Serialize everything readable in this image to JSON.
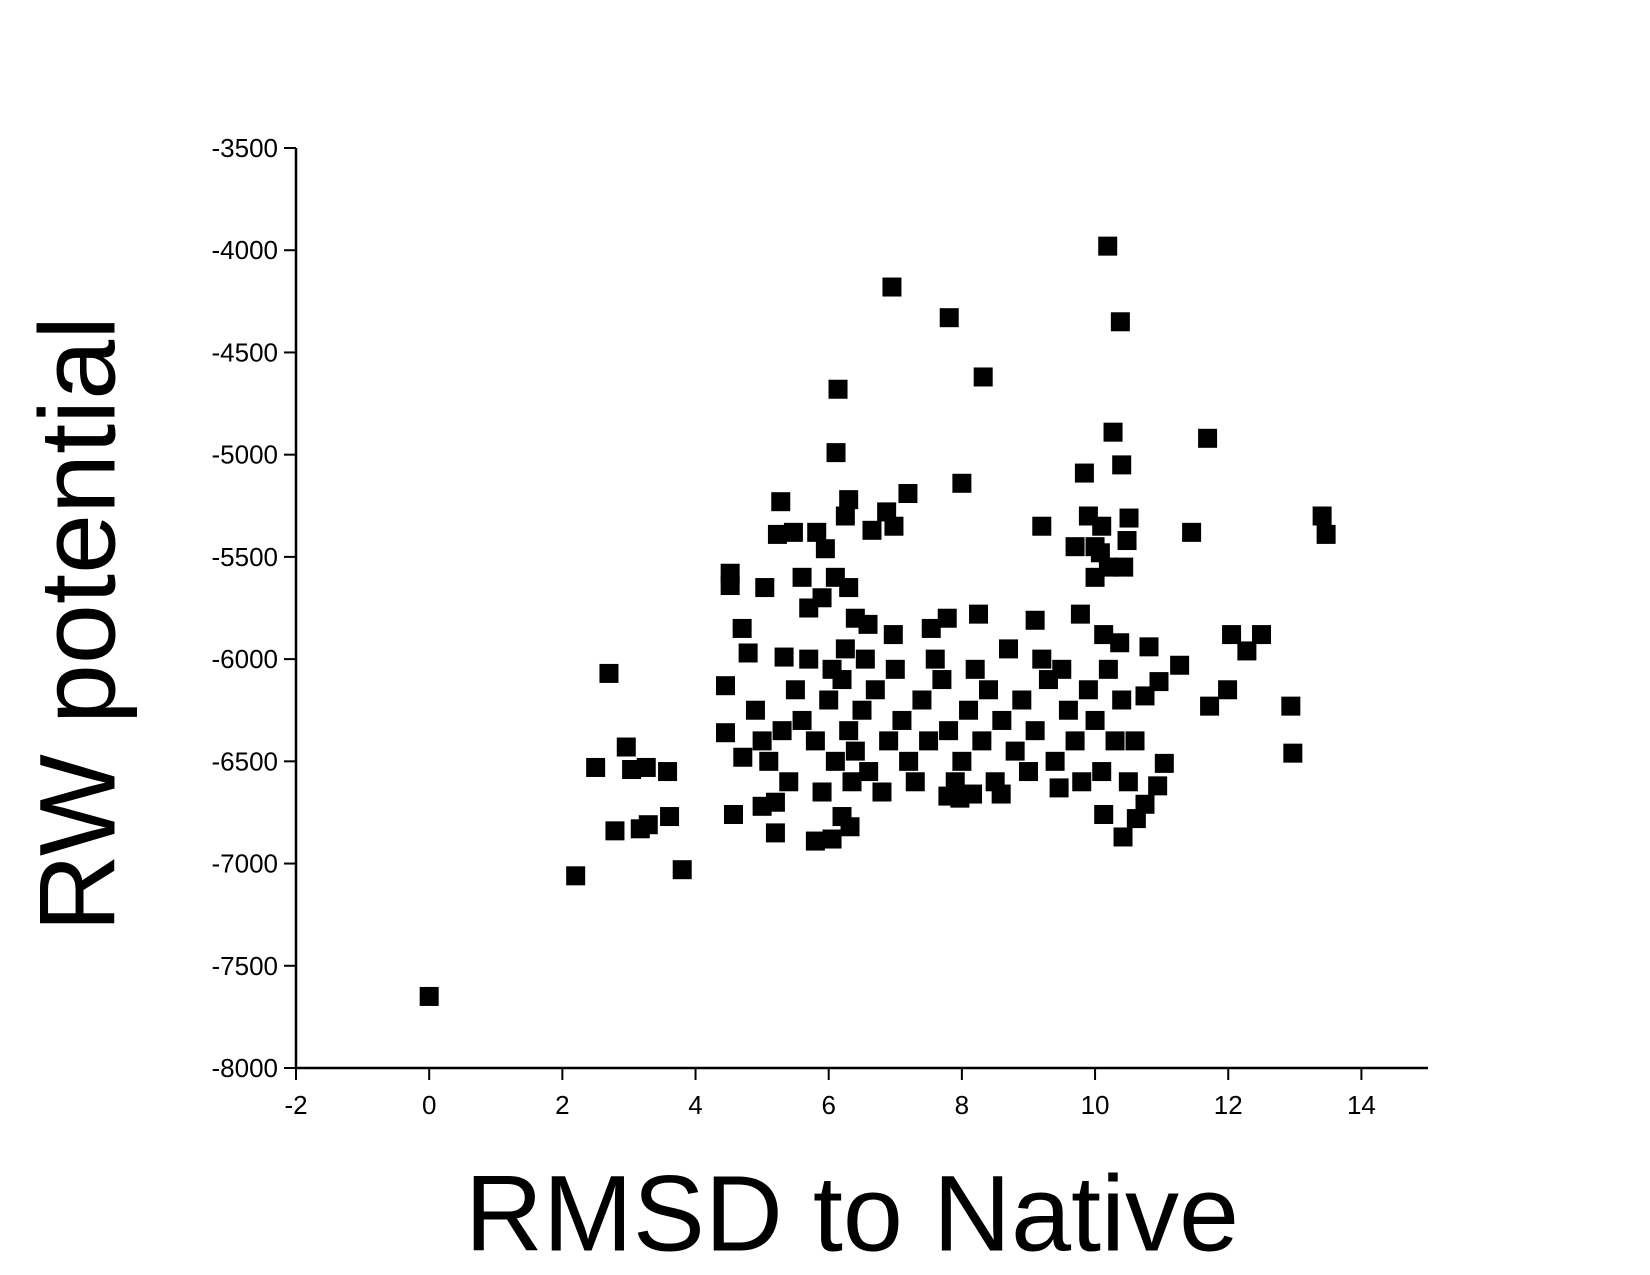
{
  "chart_data": {
    "type": "scatter",
    "xlabel": "RMSD to Native",
    "ylabel": "RW potential",
    "xlim": [
      -2,
      15
    ],
    "ylim": [
      -8000,
      -3500
    ],
    "xticks": [
      -2,
      0,
      2,
      4,
      6,
      8,
      10,
      12,
      14
    ],
    "yticks": [
      -8000,
      -7500,
      -7000,
      -6500,
      -6000,
      -5500,
      -5000,
      -4500,
      -4000,
      -3500
    ],
    "grid": false,
    "color": "#000000",
    "x": [
      0,
      2.2,
      2.7,
      2.5,
      2.96,
      3.04,
      3.26,
      3.58,
      2.79,
      3.17,
      3.29,
      3.61,
      3.8,
      10.19,
      6.95,
      7.81,
      10.38,
      8.32,
      6.14,
      10.27,
      11.69,
      10.4,
      13.41,
      13.47,
      11.45,
      12.94,
      12.97,
      11.72,
      11.99,
      12.05,
      12.5,
      12.28,
      11.27,
      10.81,
      11.04,
      8.0,
      7.19,
      6.11,
      9.2,
      9.84,
      10.08,
      10.51,
      10.48,
      10.43,
      6.65,
      6.87,
      6.98,
      5.28,
      5.23,
      5.47,
      5.82,
      5.95,
      6.3,
      6.25,
      4.52,
      4.52,
      4.7,
      4.79,
      4.45,
      4.45,
      4.57,
      4.71,
      5.0,
      5.2,
      5.8,
      6.05,
      6.2,
      6.32,
      5.33,
      5.04,
      7.79,
      7.97,
      8.16,
      8.59,
      9.46,
      10.13,
      10.42,
      10.62,
      10.75,
      10.94,
      9.78,
      9.1,
      8.25,
      7.54,
      7.78,
      6.97,
      10.13,
      10.37,
      6.59,
      10.75,
      10.96,
      5.6,
      5.8,
      6.0,
      6.1,
      6.2,
      6.3,
      6.4,
      6.5,
      6.6,
      6.7,
      6.9,
      7.1,
      7.2,
      7.4,
      7.5,
      7.7,
      7.8,
      8.0,
      8.1,
      8.3,
      8.4,
      8.6,
      8.8,
      8.9,
      9.1,
      9.3,
      9.4,
      9.6,
      9.7,
      9.9,
      10.0,
      10.1,
      10.3,
      10.4,
      10.5,
      5.4,
      5.5,
      5.7,
      5.9,
      6.05,
      6.25,
      6.35,
      6.55,
      6.8,
      7.0,
      7.3,
      7.6,
      7.9,
      8.2,
      8.5,
      8.7,
      9.0,
      9.2,
      9.5,
      9.8,
      10.2,
      10.6,
      5.1,
      5.0,
      4.9,
      5.3,
      5.2,
      5.9,
      6.1,
      6.3,
      5.6,
      5.7,
      6.4,
      10.0,
      10.2,
      9.7,
      9.9,
      10.0,
      10.1
    ],
    "values": [
      -7650,
      -7060,
      -6070,
      -6530,
      -6430,
      -6540,
      -6530,
      -6550,
      -6840,
      -6830,
      -6810,
      -6770,
      -7030,
      -3980,
      -4180,
      -4330,
      -4350,
      -4620,
      -4680,
      -4890,
      -4920,
      -5050,
      -5300,
      -5390,
      -5380,
      -6230,
      -6460,
      -6230,
      -6150,
      -5880,
      -5880,
      -5960,
      -6030,
      -5940,
      -6510,
      -5140,
      -5190,
      -4990,
      -5350,
      -5090,
      -5480,
      -5310,
      -5420,
      -5550,
      -5370,
      -5280,
      -5350,
      -5230,
      -5390,
      -5380,
      -5380,
      -5460,
      -5220,
      -5300,
      -5580,
      -5640,
      -5850,
      -5970,
      -6130,
      -6360,
      -6760,
      -6480,
      -6720,
      -6850,
      -6890,
      -6880,
      -6770,
      -6820,
      -5990,
      -5650,
      -6670,
      -6680,
      -6660,
      -6660,
      -6630,
      -6760,
      -6870,
      -6780,
      -6710,
      -6620,
      -5780,
      -5810,
      -5780,
      -5850,
      -5800,
      -5880,
      -5880,
      -5920,
      -5830,
      -6180,
      -6110,
      -6300,
      -6400,
      -6200,
      -6500,
      -6100,
      -6350,
      -6450,
      -6250,
      -6550,
      -6150,
      -6400,
      -6300,
      -6500,
      -6200,
      -6400,
      -6100,
      -6350,
      -6500,
      -6250,
      -6400,
      -6150,
      -6300,
      -6450,
      -6200,
      -6350,
      -6100,
      -6500,
      -6250,
      -6400,
      -6150,
      -6300,
      -6550,
      -6400,
      -6200,
      -6600,
      -6600,
      -6150,
      -6000,
      -6650,
      -6050,
      -5950,
      -6600,
      -6000,
      -6650,
      -6050,
      -6600,
      -6000,
      -6600,
      -6050,
      -6600,
      -5950,
      -6550,
      -6000,
      -6050,
      -6600,
      -6050,
      -6400,
      -6500,
      -6400,
      -6250,
      -6350,
      -6700,
      -5700,
      -5600,
      -5650,
      -5600,
      -5750,
      -5800,
      -5600,
      -5550,
      -5450,
      -5300,
      -5450,
      -5350
    ]
  }
}
